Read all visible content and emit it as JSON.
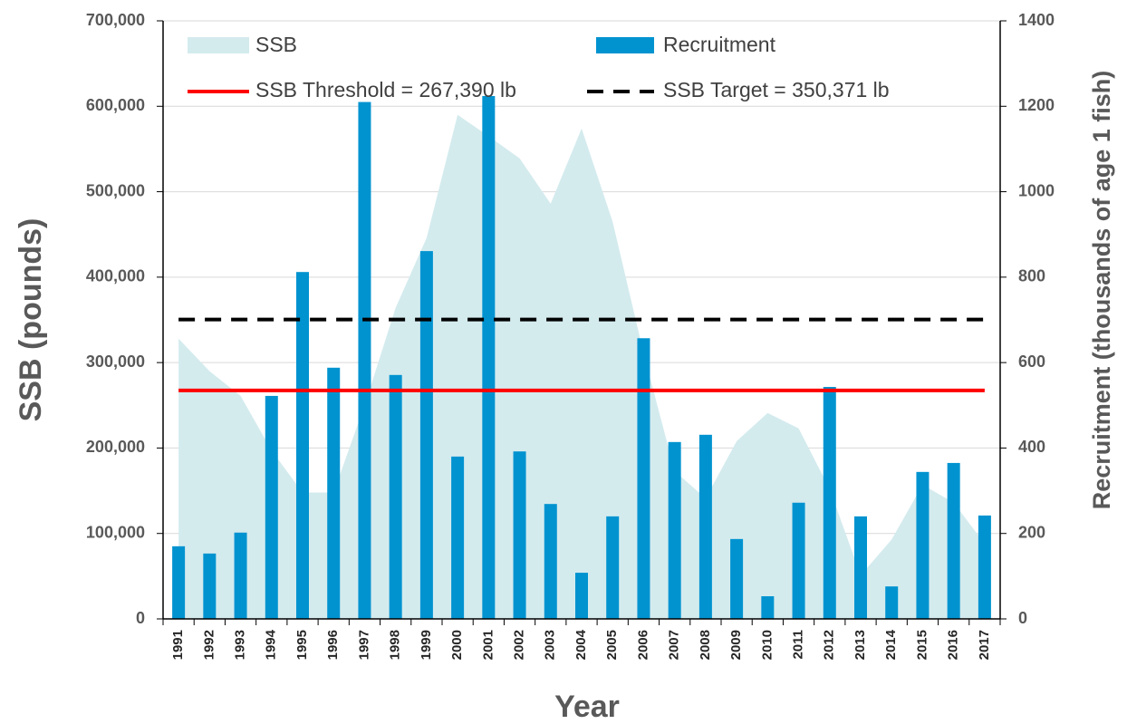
{
  "chart_data": {
    "type": "bar_area",
    "x_label": "Year",
    "y_label": "SSB (pounds)",
    "y2_label": "Recruitment (thousands of age 1 fish)",
    "categories": [
      "1991",
      "1992",
      "1993",
      "1994",
      "1995",
      "1996",
      "1997",
      "1998",
      "1999",
      "2000",
      "2001",
      "2002",
      "2003",
      "2004",
      "2005",
      "2006",
      "2007",
      "2008",
      "2009",
      "2010",
      "2011",
      "2012",
      "2013",
      "2014",
      "2015",
      "2016",
      "2017"
    ],
    "series": [
      {
        "name": "SSB",
        "type": "area",
        "color": "#d4ebee",
        "axis": "y",
        "values": [
          328000,
          290000,
          261000,
          197000,
          148000,
          148000,
          250000,
          364000,
          446000,
          590000,
          565000,
          539000,
          486000,
          574000,
          465000,
          311000,
          173000,
          141000,
          208000,
          241000,
          223000,
          152000,
          51000,
          93000,
          157000,
          136000,
          88000
        ]
      },
      {
        "name": "Recruitment",
        "type": "bar",
        "color": "#0093d0",
        "axis": "y2",
        "values": [
          170,
          153,
          202,
          522,
          812,
          588,
          1210,
          571,
          861,
          380,
          1224,
          392,
          269,
          108,
          240,
          657,
          414,
          431,
          187,
          53,
          272,
          543,
          240,
          76,
          344,
          365,
          242
        ]
      }
    ],
    "reference_lines": [
      {
        "name": "SSB Threshold = 267,390 lb",
        "value": 267390,
        "color": "#ff0000",
        "dash": false
      },
      {
        "name": "SSB Target = 350,371 lb",
        "value": 350371,
        "color": "#000000",
        "dash": true
      }
    ],
    "ylim": [
      0,
      700000
    ],
    "yticks": [
      0,
      {
        "value": 100000,
        "label": "100,000"
      },
      {
        "value": 200000,
        "label": "200,000"
      },
      {
        "value": 300000,
        "label": "300,000"
      },
      {
        "value": 400000,
        "label": "400,000"
      },
      {
        "value": 500000,
        "label": "500,000"
      },
      {
        "value": 600000,
        "label": "600,000"
      },
      {
        "value": 700000,
        "label": "700,000"
      }
    ],
    "y2lim": [
      0,
      1400
    ],
    "y2ticks": [
      0,
      200,
      400,
      600,
      800,
      1000,
      1200,
      1400
    ],
    "grid": true
  }
}
